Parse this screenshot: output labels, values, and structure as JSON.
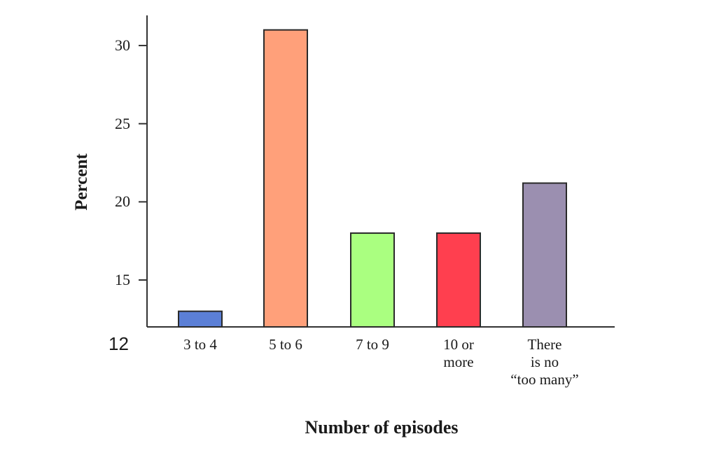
{
  "chart_data": {
    "type": "bar",
    "title": "",
    "xlabel": "Number of episodes",
    "ylabel": "Percent",
    "categories": [
      "3 to 4",
      "5 to 6",
      "7 to 9",
      "10 or more",
      "There is no “too many”"
    ],
    "category_lines": [
      [
        "3 to 4"
      ],
      [
        "5 to 6"
      ],
      [
        "7 to 9"
      ],
      [
        "10 or",
        "more"
      ],
      [
        "There",
        "is no",
        "“too many”"
      ]
    ],
    "values": [
      13,
      31,
      18,
      18,
      21.2
    ],
    "colors": [
      "#5b7fd6",
      "#ffa07a",
      "#aaff80",
      "#ff3f4f",
      "#9b8fb0"
    ],
    "ylim": [
      12,
      32
    ],
    "yticks": [
      15,
      20,
      25,
      30
    ],
    "baseline_label": "12",
    "grid": false,
    "legend": null
  }
}
